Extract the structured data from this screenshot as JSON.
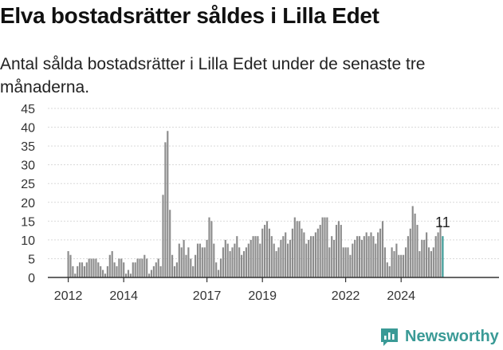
{
  "header": {
    "title": "Elva bostadsrätter såldes i Lilla Edet",
    "subtitle": "Antal sålda bostadsrätter i Lilla Edet under de senaste tre månaderna."
  },
  "brand": {
    "name": "Newsworthy",
    "color": "#3a9a96"
  },
  "chart_data": {
    "type": "bar",
    "title": "",
    "xlabel": "",
    "ylabel": "",
    "ylim": [
      0,
      45
    ],
    "yticks": [
      0,
      5,
      10,
      15,
      20,
      25,
      30,
      35,
      40,
      45
    ],
    "xticks": [
      {
        "label": "2012",
        "month": "2012-01"
      },
      {
        "label": "2014",
        "month": "2014-01"
      },
      {
        "label": "2017",
        "month": "2017-01"
      },
      {
        "label": "2019",
        "month": "2019-01"
      },
      {
        "label": "2022",
        "month": "2022-01"
      },
      {
        "label": "2024",
        "month": "2024-01"
      }
    ],
    "grid": true,
    "bar_color": "#8c8c8c",
    "highlight_color": "#3a9a96",
    "start_month": "2012-01",
    "values": [
      7,
      6,
      3,
      1,
      3,
      4,
      4,
      3,
      4,
      5,
      5,
      5,
      5,
      4,
      3,
      2,
      1,
      3,
      6,
      7,
      4,
      3,
      5,
      5,
      4,
      1,
      2,
      1,
      4,
      4,
      5,
      5,
      5,
      6,
      5,
      1,
      2,
      3,
      4,
      5,
      3,
      22,
      36,
      39,
      18,
      6,
      3,
      4,
      9,
      8,
      10,
      6,
      8,
      5,
      3,
      6,
      9,
      9,
      8,
      8,
      10,
      16,
      15,
      9,
      4,
      2,
      5,
      8,
      10,
      9,
      7,
      8,
      9,
      11,
      8,
      6,
      7,
      8,
      9,
      10,
      11,
      11,
      11,
      9,
      13,
      14,
      15,
      13,
      11,
      9,
      7,
      8,
      10,
      11,
      12,
      9,
      10,
      13,
      16,
      15,
      15,
      13,
      12,
      9,
      10,
      11,
      11,
      12,
      13,
      14,
      16,
      16,
      16,
      8,
      11,
      10,
      14,
      15,
      14,
      8,
      8,
      8,
      6,
      9,
      10,
      11,
      11,
      10,
      11,
      12,
      11,
      12,
      11,
      9,
      12,
      13,
      15,
      8,
      4,
      3,
      8,
      7,
      9,
      6,
      6,
      6,
      8,
      11,
      13,
      19,
      17,
      14,
      7,
      10,
      10,
      12,
      8,
      7,
      8,
      11,
      12,
      14,
      11
    ],
    "highlight_last": 1,
    "annotation": "11"
  }
}
